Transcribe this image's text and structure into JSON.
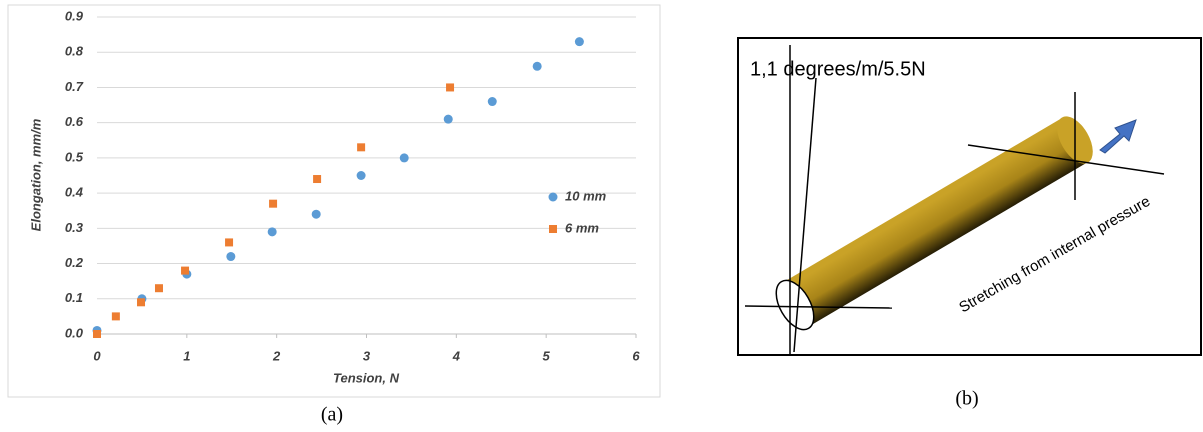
{
  "chart_data": {
    "type": "scatter",
    "xlabel": "Tension, N",
    "ylabel": "Elongation, mm/m",
    "series": [
      {
        "name": "10 mm",
        "color": "#5b9bd5",
        "marker": "circle",
        "x": [
          0,
          0.5,
          1.0,
          1.49,
          1.95,
          2.44,
          2.94,
          3.42,
          3.91,
          4.4,
          4.9,
          5.37
        ],
        "values": [
          0.01,
          0.1,
          0.17,
          0.22,
          0.29,
          0.34,
          0.45,
          0.5,
          0.61,
          0.66,
          0.76,
          0.83
        ]
      },
      {
        "name": "6 mm",
        "color": "#ed7d31",
        "marker": "square",
        "x": [
          0,
          0.21,
          0.49,
          0.69,
          0.98,
          1.47,
          1.96,
          2.45,
          2.94,
          3.93
        ],
        "values": [
          0.0,
          0.05,
          0.09,
          0.13,
          0.18,
          0.26,
          0.37,
          0.44,
          0.53,
          0.7
        ]
      }
    ],
    "xlim": [
      0,
      6
    ],
    "xticks": [
      0,
      1,
      2,
      3,
      4,
      5,
      6
    ],
    "ylim": [
      0,
      0.9
    ],
    "yticks": [
      {
        "value": 0,
        "label": "0.0"
      },
      0.1,
      0.2,
      0.3,
      0.4,
      0.5,
      0.6,
      0.7,
      0.8,
      0.9
    ],
    "grid": true,
    "legend": "right"
  },
  "diagram": {
    "annotation": "1,1 degrees/m/5.5N",
    "label": "Stretching from internal pressure"
  },
  "captions": [
    "(a)",
    "(b)"
  ]
}
